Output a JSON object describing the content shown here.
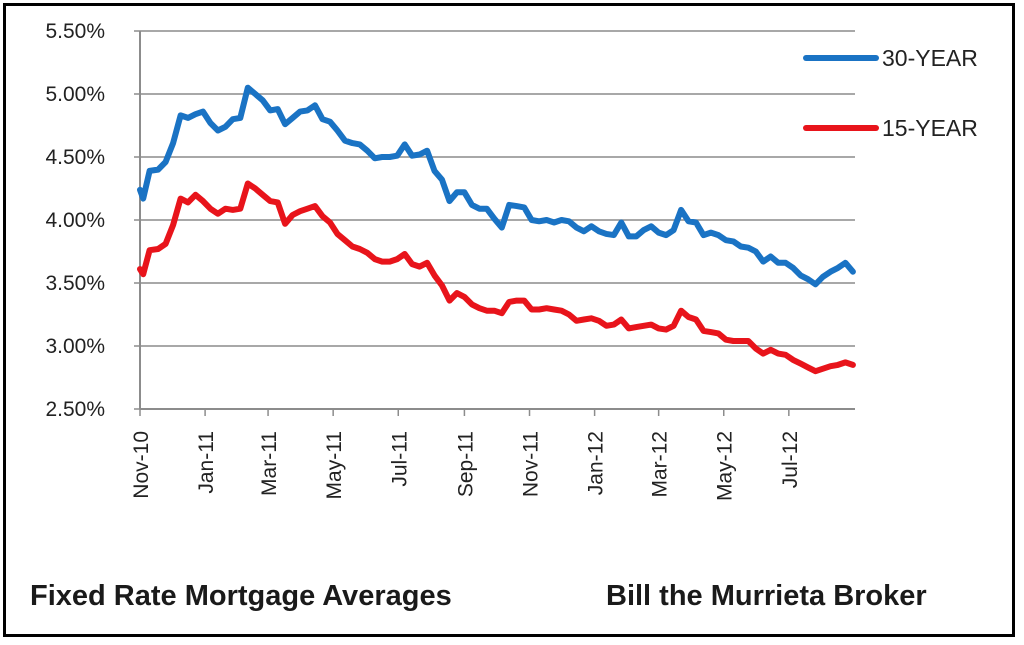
{
  "captions": {
    "left": "Fixed Rate Mortgage Averages",
    "right": "Bill the Murrieta Broker"
  },
  "colors": {
    "thirty_year": "#1a73c4",
    "fifteen_year": "#e8141b",
    "grid": "#8c8c8c",
    "axis": "#8c8c8c"
  },
  "chart_data": {
    "type": "line",
    "title": "",
    "xlabel": "",
    "ylabel": "",
    "ylim": [
      2.5,
      5.5
    ],
    "y_ticks": [
      {
        "value": 5.5,
        "label": "5.50%"
      },
      {
        "value": 5.0,
        "label": "5.00%"
      },
      {
        "value": 4.5,
        "label": "4.50%"
      },
      {
        "value": 4.0,
        "label": "4.00%"
      },
      {
        "value": 3.5,
        "label": "3.50%"
      },
      {
        "value": 3.0,
        "label": "3.00%"
      },
      {
        "value": 2.5,
        "label": "2.50%"
      }
    ],
    "x_range": [
      "2010-11-01",
      "2012-09-01"
    ],
    "x_ticks": [
      {
        "date": "2010-11-01",
        "label": "Nov-10"
      },
      {
        "date": "2011-01-01",
        "label": "Jan-11"
      },
      {
        "date": "2011-03-01",
        "label": "Mar-11"
      },
      {
        "date": "2011-05-01",
        "label": "May-11"
      },
      {
        "date": "2011-07-01",
        "label": "Jul-11"
      },
      {
        "date": "2011-09-01",
        "label": "Sep-11"
      },
      {
        "date": "2011-11-01",
        "label": "Nov-11"
      },
      {
        "date": "2012-01-01",
        "label": "Jan-12"
      },
      {
        "date": "2012-03-01",
        "label": "Mar-12"
      },
      {
        "date": "2012-05-01",
        "label": "May-12"
      },
      {
        "date": "2012-07-01",
        "label": "Jul-12"
      }
    ],
    "grid": "horizontal",
    "legend_position": "top-right",
    "series": [
      {
        "name": "30-YEAR",
        "color": "#1a73c4",
        "points": [
          {
            "x": "2010-11-01",
            "y": 4.24
          },
          {
            "x": "2010-11-04",
            "y": 4.17
          },
          {
            "x": "2010-11-10",
            "y": 4.39
          },
          {
            "x": "2010-11-18",
            "y": 4.4
          },
          {
            "x": "2010-11-25",
            "y": 4.46
          },
          {
            "x": "2010-12-02",
            "y": 4.61
          },
          {
            "x": "2010-12-09",
            "y": 4.83
          },
          {
            "x": "2010-12-16",
            "y": 4.81
          },
          {
            "x": "2010-12-23",
            "y": 4.84
          },
          {
            "x": "2010-12-30",
            "y": 4.86
          },
          {
            "x": "2011-01-06",
            "y": 4.77
          },
          {
            "x": "2011-01-13",
            "y": 4.71
          },
          {
            "x": "2011-01-20",
            "y": 4.74
          },
          {
            "x": "2011-01-27",
            "y": 4.8
          },
          {
            "x": "2011-02-03",
            "y": 4.81
          },
          {
            "x": "2011-02-10",
            "y": 5.05
          },
          {
            "x": "2011-02-17",
            "y": 5.0
          },
          {
            "x": "2011-02-24",
            "y": 4.95
          },
          {
            "x": "2011-03-03",
            "y": 4.87
          },
          {
            "x": "2011-03-10",
            "y": 4.88
          },
          {
            "x": "2011-03-17",
            "y": 4.76
          },
          {
            "x": "2011-03-24",
            "y": 4.81
          },
          {
            "x": "2011-03-31",
            "y": 4.86
          },
          {
            "x": "2011-04-07",
            "y": 4.87
          },
          {
            "x": "2011-04-14",
            "y": 4.91
          },
          {
            "x": "2011-04-21",
            "y": 4.8
          },
          {
            "x": "2011-04-28",
            "y": 4.78
          },
          {
            "x": "2011-05-05",
            "y": 4.71
          },
          {
            "x": "2011-05-12",
            "y": 4.63
          },
          {
            "x": "2011-05-19",
            "y": 4.61
          },
          {
            "x": "2011-05-26",
            "y": 4.6
          },
          {
            "x": "2011-06-02",
            "y": 4.55
          },
          {
            "x": "2011-06-09",
            "y": 4.49
          },
          {
            "x": "2011-06-16",
            "y": 4.5
          },
          {
            "x": "2011-06-23",
            "y": 4.5
          },
          {
            "x": "2011-06-30",
            "y": 4.51
          },
          {
            "x": "2011-07-07",
            "y": 4.6
          },
          {
            "x": "2011-07-14",
            "y": 4.51
          },
          {
            "x": "2011-07-21",
            "y": 4.52
          },
          {
            "x": "2011-07-28",
            "y": 4.55
          },
          {
            "x": "2011-08-04",
            "y": 4.39
          },
          {
            "x": "2011-08-11",
            "y": 4.32
          },
          {
            "x": "2011-08-18",
            "y": 4.15
          },
          {
            "x": "2011-08-25",
            "y": 4.22
          },
          {
            "x": "2011-09-01",
            "y": 4.22
          },
          {
            "x": "2011-09-08",
            "y": 4.12
          },
          {
            "x": "2011-09-15",
            "y": 4.09
          },
          {
            "x": "2011-09-22",
            "y": 4.09
          },
          {
            "x": "2011-09-29",
            "y": 4.01
          },
          {
            "x": "2011-10-06",
            "y": 3.94
          },
          {
            "x": "2011-10-13",
            "y": 4.12
          },
          {
            "x": "2011-10-20",
            "y": 4.11
          },
          {
            "x": "2011-10-27",
            "y": 4.1
          },
          {
            "x": "2011-11-03",
            "y": 4.0
          },
          {
            "x": "2011-11-10",
            "y": 3.99
          },
          {
            "x": "2011-11-17",
            "y": 4.0
          },
          {
            "x": "2011-11-24",
            "y": 3.98
          },
          {
            "x": "2011-12-01",
            "y": 4.0
          },
          {
            "x": "2011-12-08",
            "y": 3.99
          },
          {
            "x": "2011-12-15",
            "y": 3.94
          },
          {
            "x": "2011-12-22",
            "y": 3.91
          },
          {
            "x": "2011-12-29",
            "y": 3.95
          },
          {
            "x": "2012-01-05",
            "y": 3.91
          },
          {
            "x": "2012-01-12",
            "y": 3.89
          },
          {
            "x": "2012-01-19",
            "y": 3.88
          },
          {
            "x": "2012-01-26",
            "y": 3.98
          },
          {
            "x": "2012-02-02",
            "y": 3.87
          },
          {
            "x": "2012-02-09",
            "y": 3.87
          },
          {
            "x": "2012-02-16",
            "y": 3.92
          },
          {
            "x": "2012-02-23",
            "y": 3.95
          },
          {
            "x": "2012-03-01",
            "y": 3.9
          },
          {
            "x": "2012-03-08",
            "y": 3.88
          },
          {
            "x": "2012-03-15",
            "y": 3.92
          },
          {
            "x": "2012-03-22",
            "y": 4.08
          },
          {
            "x": "2012-03-29",
            "y": 3.99
          },
          {
            "x": "2012-04-05",
            "y": 3.98
          },
          {
            "x": "2012-04-12",
            "y": 3.88
          },
          {
            "x": "2012-04-19",
            "y": 3.9
          },
          {
            "x": "2012-04-26",
            "y": 3.88
          },
          {
            "x": "2012-05-03",
            "y": 3.84
          },
          {
            "x": "2012-05-10",
            "y": 3.83
          },
          {
            "x": "2012-05-17",
            "y": 3.79
          },
          {
            "x": "2012-05-24",
            "y": 3.78
          },
          {
            "x": "2012-05-31",
            "y": 3.75
          },
          {
            "x": "2012-06-07",
            "y": 3.67
          },
          {
            "x": "2012-06-14",
            "y": 3.71
          },
          {
            "x": "2012-06-21",
            "y": 3.66
          },
          {
            "x": "2012-06-28",
            "y": 3.66
          },
          {
            "x": "2012-07-05",
            "y": 3.62
          },
          {
            "x": "2012-07-12",
            "y": 3.56
          },
          {
            "x": "2012-07-19",
            "y": 3.53
          },
          {
            "x": "2012-07-26",
            "y": 3.49
          },
          {
            "x": "2012-08-02",
            "y": 3.55
          },
          {
            "x": "2012-08-09",
            "y": 3.59
          },
          {
            "x": "2012-08-16",
            "y": 3.62
          },
          {
            "x": "2012-08-23",
            "y": 3.66
          },
          {
            "x": "2012-08-30",
            "y": 3.59
          }
        ]
      },
      {
        "name": "15-YEAR",
        "color": "#e8141b",
        "points": [
          {
            "x": "2010-11-01",
            "y": 3.61
          },
          {
            "x": "2010-11-04",
            "y": 3.57
          },
          {
            "x": "2010-11-10",
            "y": 3.76
          },
          {
            "x": "2010-11-18",
            "y": 3.77
          },
          {
            "x": "2010-11-25",
            "y": 3.81
          },
          {
            "x": "2010-12-02",
            "y": 3.96
          },
          {
            "x": "2010-12-09",
            "y": 4.17
          },
          {
            "x": "2010-12-16",
            "y": 4.14
          },
          {
            "x": "2010-12-23",
            "y": 4.2
          },
          {
            "x": "2010-12-30",
            "y": 4.15
          },
          {
            "x": "2011-01-06",
            "y": 4.09
          },
          {
            "x": "2011-01-13",
            "y": 4.05
          },
          {
            "x": "2011-01-20",
            "y": 4.09
          },
          {
            "x": "2011-01-27",
            "y": 4.08
          },
          {
            "x": "2011-02-03",
            "y": 4.09
          },
          {
            "x": "2011-02-10",
            "y": 4.29
          },
          {
            "x": "2011-02-17",
            "y": 4.25
          },
          {
            "x": "2011-02-24",
            "y": 4.2
          },
          {
            "x": "2011-03-03",
            "y": 4.15
          },
          {
            "x": "2011-03-10",
            "y": 4.14
          },
          {
            "x": "2011-03-17",
            "y": 3.97
          },
          {
            "x": "2011-03-24",
            "y": 4.04
          },
          {
            "x": "2011-03-31",
            "y": 4.07
          },
          {
            "x": "2011-04-07",
            "y": 4.09
          },
          {
            "x": "2011-04-14",
            "y": 4.11
          },
          {
            "x": "2011-04-21",
            "y": 4.03
          },
          {
            "x": "2011-04-28",
            "y": 3.98
          },
          {
            "x": "2011-05-05",
            "y": 3.89
          },
          {
            "x": "2011-05-12",
            "y": 3.84
          },
          {
            "x": "2011-05-19",
            "y": 3.79
          },
          {
            "x": "2011-05-26",
            "y": 3.77
          },
          {
            "x": "2011-06-02",
            "y": 3.74
          },
          {
            "x": "2011-06-09",
            "y": 3.69
          },
          {
            "x": "2011-06-16",
            "y": 3.67
          },
          {
            "x": "2011-06-23",
            "y": 3.67
          },
          {
            "x": "2011-06-30",
            "y": 3.69
          },
          {
            "x": "2011-07-07",
            "y": 3.73
          },
          {
            "x": "2011-07-14",
            "y": 3.65
          },
          {
            "x": "2011-07-21",
            "y": 3.63
          },
          {
            "x": "2011-07-28",
            "y": 3.66
          },
          {
            "x": "2011-08-04",
            "y": 3.56
          },
          {
            "x": "2011-08-11",
            "y": 3.48
          },
          {
            "x": "2011-08-18",
            "y": 3.36
          },
          {
            "x": "2011-08-25",
            "y": 3.42
          },
          {
            "x": "2011-09-01",
            "y": 3.39
          },
          {
            "x": "2011-09-08",
            "y": 3.33
          },
          {
            "x": "2011-09-15",
            "y": 3.3
          },
          {
            "x": "2011-09-22",
            "y": 3.28
          },
          {
            "x": "2011-09-29",
            "y": 3.28
          },
          {
            "x": "2011-10-06",
            "y": 3.26
          },
          {
            "x": "2011-10-13",
            "y": 3.35
          },
          {
            "x": "2011-10-20",
            "y": 3.36
          },
          {
            "x": "2011-10-27",
            "y": 3.36
          },
          {
            "x": "2011-11-03",
            "y": 3.29
          },
          {
            "x": "2011-11-10",
            "y": 3.29
          },
          {
            "x": "2011-11-17",
            "y": 3.3
          },
          {
            "x": "2011-11-24",
            "y": 3.29
          },
          {
            "x": "2011-12-01",
            "y": 3.28
          },
          {
            "x": "2011-12-08",
            "y": 3.25
          },
          {
            "x": "2011-12-15",
            "y": 3.2
          },
          {
            "x": "2011-12-22",
            "y": 3.21
          },
          {
            "x": "2011-12-29",
            "y": 3.22
          },
          {
            "x": "2012-01-05",
            "y": 3.2
          },
          {
            "x": "2012-01-12",
            "y": 3.16
          },
          {
            "x": "2012-01-19",
            "y": 3.17
          },
          {
            "x": "2012-01-26",
            "y": 3.21
          },
          {
            "x": "2012-02-02",
            "y": 3.14
          },
          {
            "x": "2012-02-09",
            "y": 3.15
          },
          {
            "x": "2012-02-16",
            "y": 3.16
          },
          {
            "x": "2012-02-23",
            "y": 3.17
          },
          {
            "x": "2012-03-01",
            "y": 3.14
          },
          {
            "x": "2012-03-08",
            "y": 3.13
          },
          {
            "x": "2012-03-15",
            "y": 3.16
          },
          {
            "x": "2012-03-22",
            "y": 3.28
          },
          {
            "x": "2012-03-29",
            "y": 3.23
          },
          {
            "x": "2012-04-05",
            "y": 3.21
          },
          {
            "x": "2012-04-12",
            "y": 3.12
          },
          {
            "x": "2012-04-19",
            "y": 3.11
          },
          {
            "x": "2012-04-26",
            "y": 3.1
          },
          {
            "x": "2012-05-03",
            "y": 3.05
          },
          {
            "x": "2012-05-10",
            "y": 3.04
          },
          {
            "x": "2012-05-17",
            "y": 3.04
          },
          {
            "x": "2012-05-24",
            "y": 3.04
          },
          {
            "x": "2012-05-31",
            "y": 2.98
          },
          {
            "x": "2012-06-07",
            "y": 2.94
          },
          {
            "x": "2012-06-14",
            "y": 2.97
          },
          {
            "x": "2012-06-21",
            "y": 2.94
          },
          {
            "x": "2012-06-28",
            "y": 2.93
          },
          {
            "x": "2012-07-05",
            "y": 2.89
          },
          {
            "x": "2012-07-12",
            "y": 2.86
          },
          {
            "x": "2012-07-19",
            "y": 2.83
          },
          {
            "x": "2012-07-26",
            "y": 2.8
          },
          {
            "x": "2012-08-02",
            "y": 2.82
          },
          {
            "x": "2012-08-09",
            "y": 2.84
          },
          {
            "x": "2012-08-16",
            "y": 2.85
          },
          {
            "x": "2012-08-23",
            "y": 2.87
          },
          {
            "x": "2012-08-30",
            "y": 2.85
          }
        ]
      }
    ]
  }
}
